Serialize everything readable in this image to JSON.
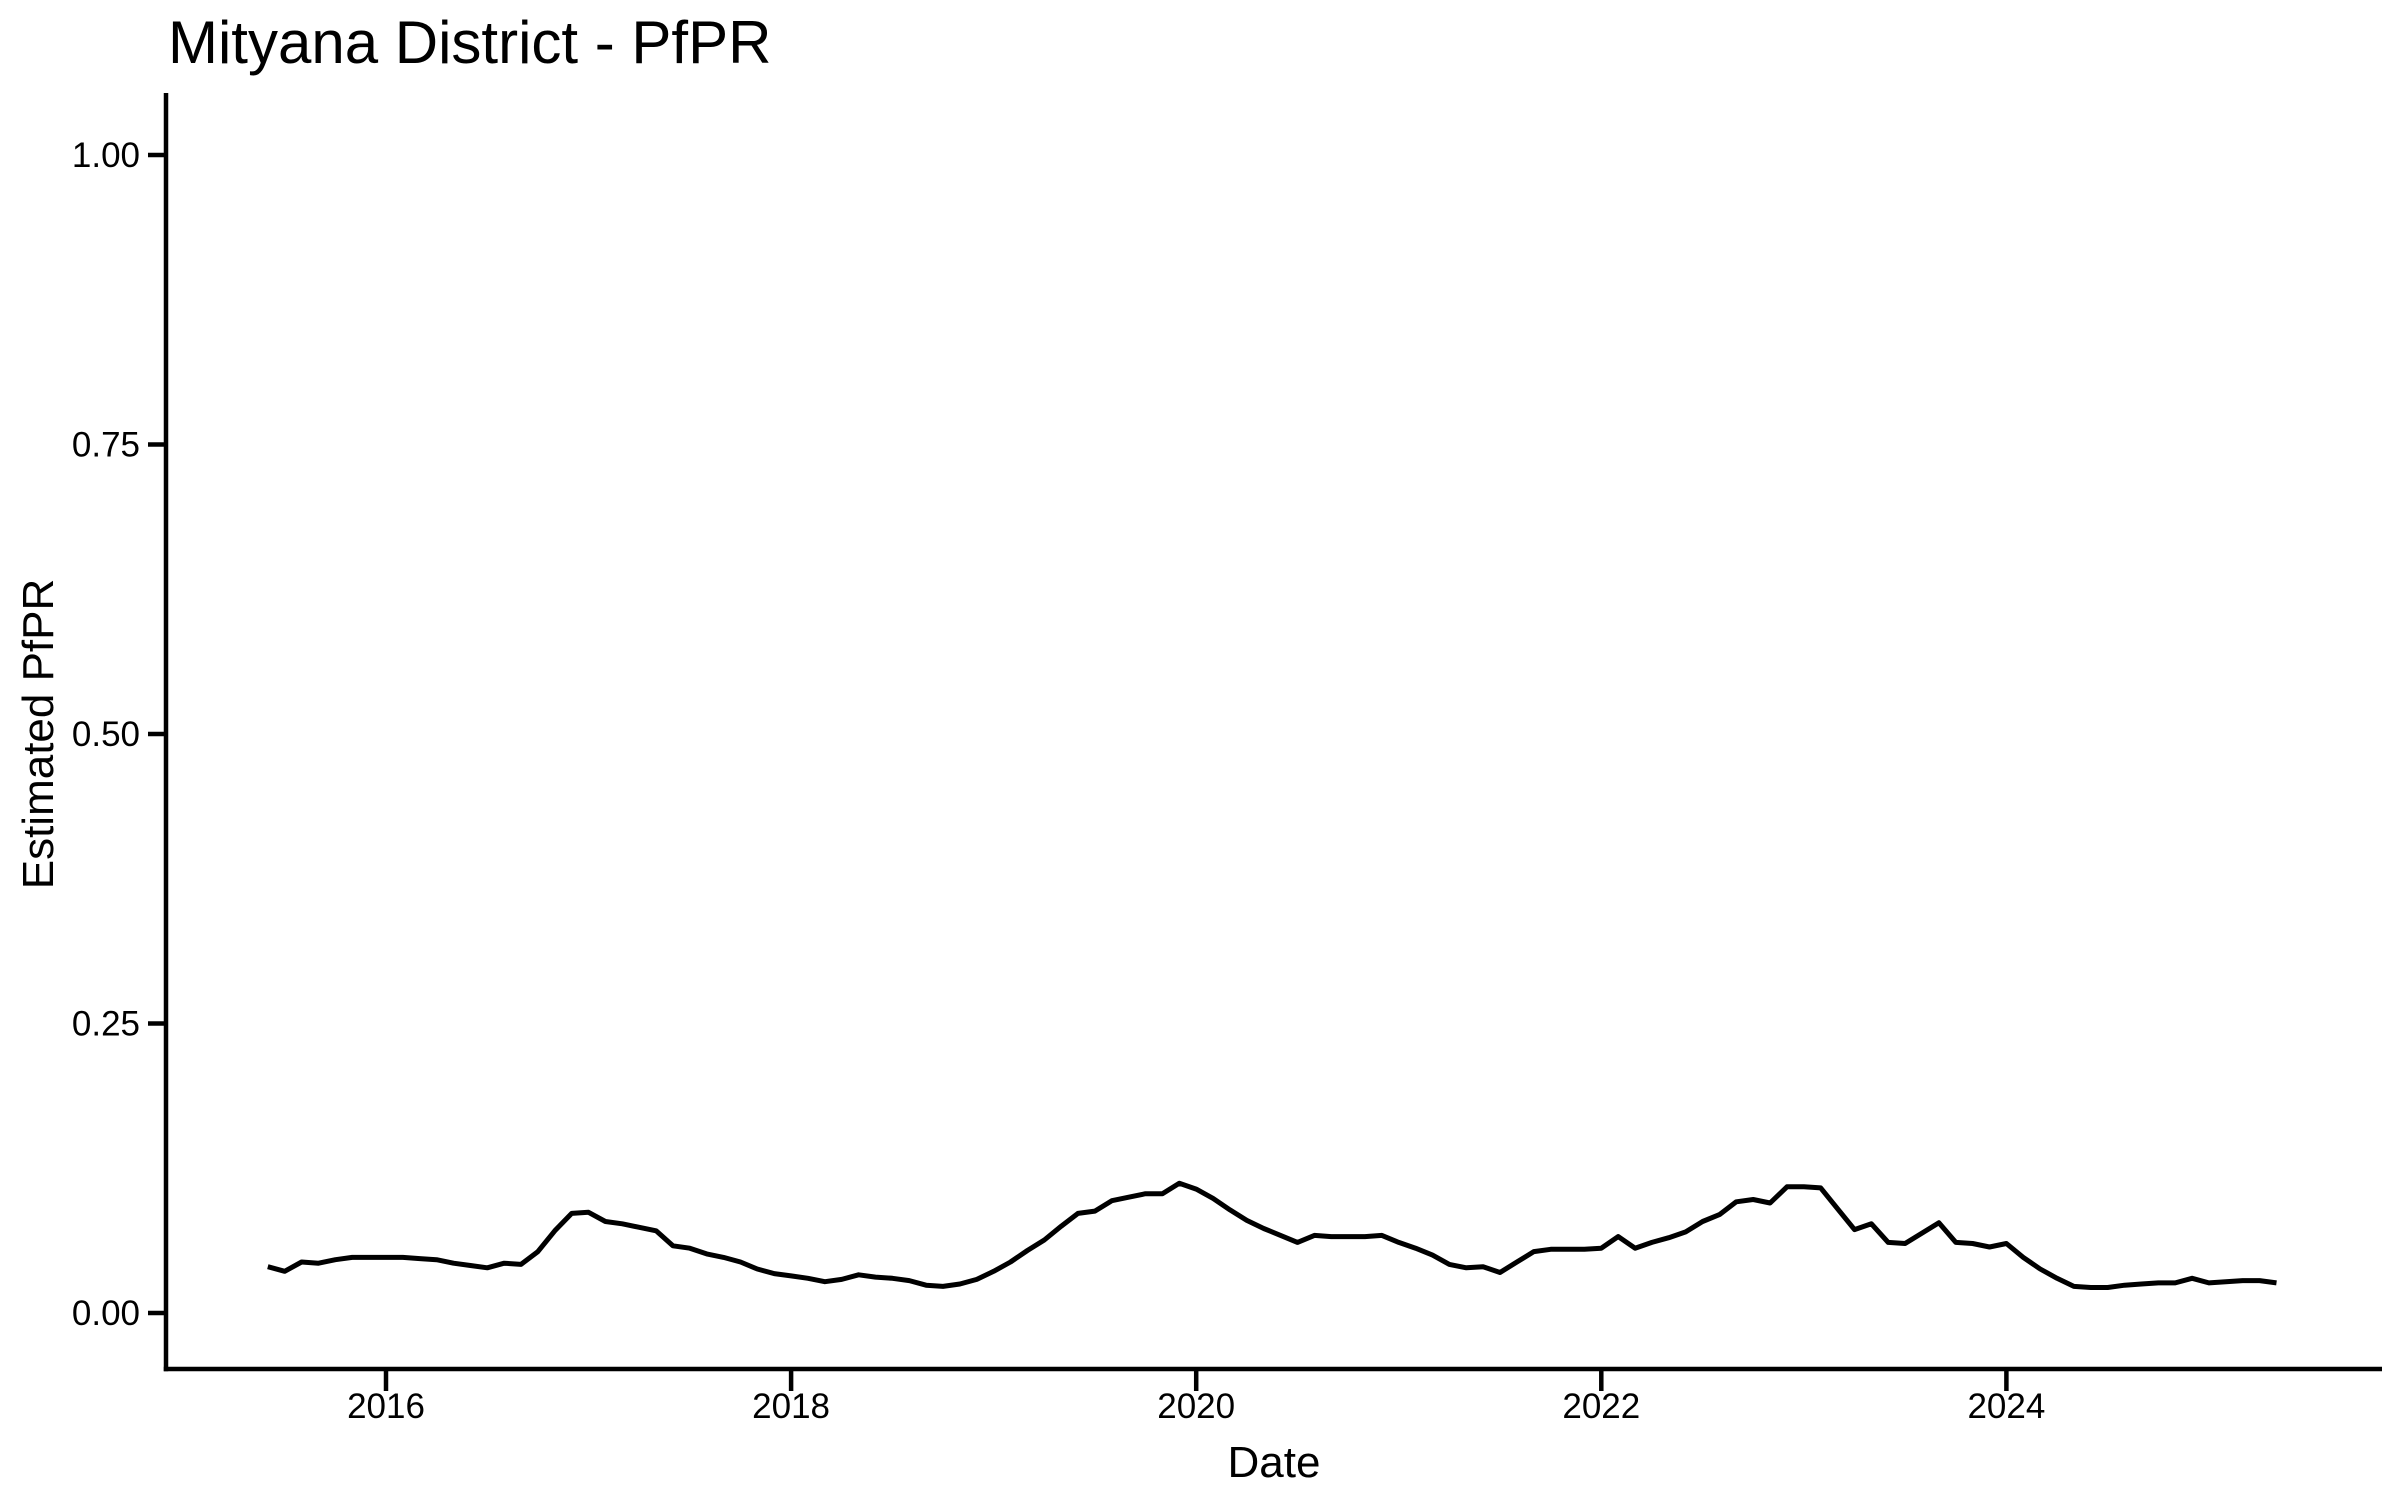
{
  "figure": {
    "background": "#ffffff",
    "text_color": "#000000"
  },
  "chart_data": {
    "type": "line",
    "title": "Mityana District - PfPR",
    "xlabel": "Date",
    "ylabel": "Estimated PfPR",
    "grid": "off",
    "legend": "none",
    "line_color": "#000000",
    "x_tick_labels": [
      "2016",
      "2018",
      "2020",
      "2022",
      "2024"
    ],
    "x_tick_years": [
      2016,
      2018,
      2020,
      2022,
      2024
    ],
    "y_tick_labels": [
      "0.00",
      "0.25",
      "0.50",
      "0.75",
      "1.00"
    ],
    "y_tick_values": [
      0,
      0.25,
      0.5,
      0.75,
      1.0
    ],
    "xlim_years": [
      2014.91,
      2025.93
    ],
    "ylim": [
      -0.048,
      1.052
    ],
    "series": [
      {
        "name": "Estimated PfPR",
        "dates": [
          "2015-06",
          "2015-07",
          "2015-08",
          "2015-09",
          "2015-10",
          "2015-11",
          "2015-12",
          "2016-01",
          "2016-02",
          "2016-03",
          "2016-04",
          "2016-05",
          "2016-06",
          "2016-07",
          "2016-08",
          "2016-09",
          "2016-10",
          "2016-11",
          "2016-12",
          "2017-01",
          "2017-02",
          "2017-03",
          "2017-04",
          "2017-05",
          "2017-06",
          "2017-07",
          "2017-08",
          "2017-09",
          "2017-10",
          "2017-11",
          "2017-12",
          "2018-01",
          "2018-02",
          "2018-03",
          "2018-04",
          "2018-05",
          "2018-06",
          "2018-07",
          "2018-08",
          "2018-09",
          "2018-10",
          "2018-11",
          "2018-12",
          "2019-01",
          "2019-02",
          "2019-03",
          "2019-04",
          "2019-05",
          "2019-06",
          "2019-07",
          "2019-08",
          "2019-09",
          "2019-10",
          "2019-11",
          "2019-12",
          "2020-01",
          "2020-02",
          "2020-03",
          "2020-04",
          "2020-05",
          "2020-06",
          "2020-07",
          "2020-08",
          "2020-09",
          "2020-10",
          "2020-11",
          "2020-12",
          "2021-01",
          "2021-02",
          "2021-03",
          "2021-04",
          "2021-05",
          "2021-06",
          "2021-07",
          "2021-08",
          "2021-09",
          "2021-10",
          "2021-11",
          "2021-12",
          "2022-01",
          "2022-02",
          "2022-03",
          "2022-04",
          "2022-05",
          "2022-06",
          "2022-07",
          "2022-08",
          "2022-09",
          "2022-10",
          "2022-11",
          "2022-12",
          "2023-01",
          "2023-02",
          "2023-03",
          "2023-04",
          "2023-05",
          "2023-06",
          "2023-07",
          "2023-08",
          "2023-09",
          "2023-10",
          "2023-11",
          "2023-12",
          "2024-01",
          "2024-02",
          "2024-03",
          "2024-04",
          "2024-05",
          "2024-06",
          "2024-07",
          "2024-08",
          "2024-09",
          "2024-10",
          "2024-11",
          "2024-12",
          "2025-01",
          "2025-02",
          "2025-03",
          "2025-04",
          "2025-05"
        ],
        "values": [
          0.04,
          0.036,
          0.044,
          0.043,
          0.046,
          0.048,
          0.048,
          0.048,
          0.048,
          0.047,
          0.046,
          0.043,
          0.041,
          0.039,
          0.043,
          0.042,
          0.053,
          0.071,
          0.086,
          0.087,
          0.079,
          0.077,
          0.074,
          0.071,
          0.058,
          0.056,
          0.051,
          0.048,
          0.044,
          0.038,
          0.034,
          0.032,
          0.03,
          0.027,
          0.029,
          0.033,
          0.031,
          0.03,
          0.028,
          0.024,
          0.023,
          0.025,
          0.029,
          0.036,
          0.044,
          0.054,
          0.063,
          0.075,
          0.086,
          0.088,
          0.097,
          0.1,
          0.103,
          0.103,
          0.112,
          0.107,
          0.099,
          0.089,
          0.08,
          0.073,
          0.067,
          0.061,
          0.067,
          0.066,
          0.066,
          0.066,
          0.067,
          0.061,
          0.056,
          0.05,
          0.042,
          0.039,
          0.04,
          0.035,
          0.044,
          0.053,
          0.055,
          0.055,
          0.055,
          0.056,
          0.066,
          0.056,
          0.061,
          0.065,
          0.07,
          0.079,
          0.085,
          0.096,
          0.098,
          0.095,
          0.109,
          0.109,
          0.108,
          0.09,
          0.072,
          0.077,
          0.061,
          0.06,
          0.069,
          0.078,
          0.061,
          0.06,
          0.057,
          0.06,
          0.048,
          0.038,
          0.03,
          0.023,
          0.022,
          0.022,
          0.024,
          0.025,
          0.026,
          0.026,
          0.03,
          0.026,
          0.027,
          0.028,
          0.028,
          0.026
        ]
      }
    ]
  }
}
